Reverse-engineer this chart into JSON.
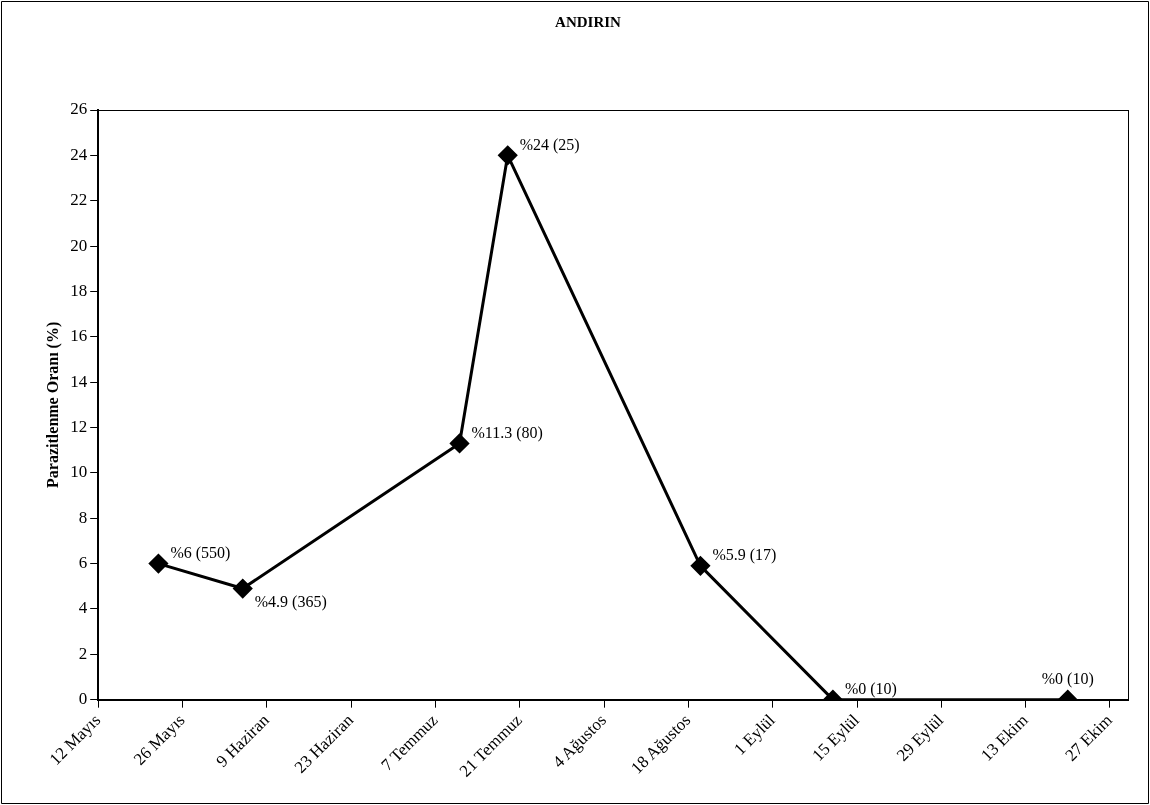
{
  "chart_data": {
    "type": "line",
    "title": "ANDIRIN",
    "ylabel": "Parazitlenme Oranı (%)",
    "x": [
      "--05-22",
      "--06-05",
      "--07-11",
      "--07-19",
      "--08-20",
      "--09-11",
      "--10-20"
    ],
    "series": [
      {
        "color": "#000000",
        "values": [
          6,
          4.9,
          11.3,
          24,
          5.9,
          0,
          0
        ],
        "value_labels": [
          "%6 (550)",
          "%4.9 (365)",
          "%11.3 (80)",
          "%24 (25)",
          "%5.9 (17)",
          "%0 (10)",
          "%0 (10)"
        ]
      }
    ],
    "xlim": [
      "--05-12",
      "--10-30"
    ],
    "xticks": [
      {
        "value": "--05-12",
        "label": "12 Mayıs"
      },
      {
        "value": "--05-26",
        "label": "26 Mayıs"
      },
      {
        "value": "--06-09",
        "label": "9 Haziran"
      },
      {
        "value": "--06-23",
        "label": "23 Haziran"
      },
      {
        "value": "--07-07",
        "label": "7 Temmuz"
      },
      {
        "value": "--07-21",
        "label": "21 Temmuz"
      },
      {
        "value": "--08-04",
        "label": "4 Ağustos"
      },
      {
        "value": "--08-18",
        "label": "18 Ağustos"
      },
      {
        "value": "--09-01",
        "label": "1 Eylül"
      },
      {
        "value": "--09-15",
        "label": "15 Eylül"
      },
      {
        "value": "--09-29",
        "label": "29 Eylül"
      },
      {
        "value": "--10-13",
        "label": "13 Ekim"
      },
      {
        "value": "--10-27",
        "label": "27 Ekim"
      }
    ],
    "ylim": [
      0,
      26
    ],
    "yticks": [
      0,
      2,
      4,
      6,
      8,
      10,
      12,
      14,
      16,
      18,
      20,
      22,
      24,
      26
    ],
    "grid": false,
    "legend": false,
    "marker": "diamond",
    "line_style": "solid"
  }
}
